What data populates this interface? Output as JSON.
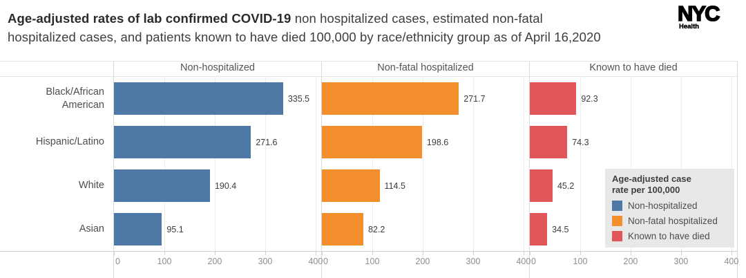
{
  "header": {
    "title_bold": "Age-adjusted rates of lab confirmed COVID-19",
    "title_rest": " non hospitalized cases, estimated non-fatal",
    "title_line2": "hospitalized cases, and patients known to have died 100,000 by race/ethnicity group as of April 16,2020"
  },
  "logo": {
    "nyc": "NYC",
    "health": "Health"
  },
  "chart_data": {
    "type": "bar",
    "orientation": "horizontal",
    "title": "Age-adjusted rates of lab confirmed COVID-19 non hospitalized cases, estimated non-fatal hospitalized cases, and patients known to have died 100,000 by race/ethnicity group as of April 16,2020",
    "categories": [
      "Black/African American",
      "Hispanic/Latino",
      "White",
      "Asian"
    ],
    "series": [
      {
        "name": "Non-hospitalized",
        "color": "#4E79A7",
        "values": [
          335.5,
          271.6,
          190.4,
          95.1
        ]
      },
      {
        "name": "Non-fatal hospitalized",
        "color": "#F28E2B",
        "values": [
          271.7,
          198.6,
          114.5,
          82.2
        ]
      },
      {
        "name": "Known to have died",
        "color": "#E15759",
        "values": [
          92.3,
          74.3,
          45.2,
          34.5
        ]
      }
    ],
    "x_ticks": [
      0,
      100,
      200,
      300,
      400
    ],
    "xlim": [
      0,
      400
    ],
    "grid": true,
    "legend": {
      "position": "right-overlay",
      "title": "Age-adjusted case rate per 100,000",
      "items": [
        "Non-hospitalized",
        "Non-fatal hospitalized",
        "Known to have died"
      ]
    }
  }
}
